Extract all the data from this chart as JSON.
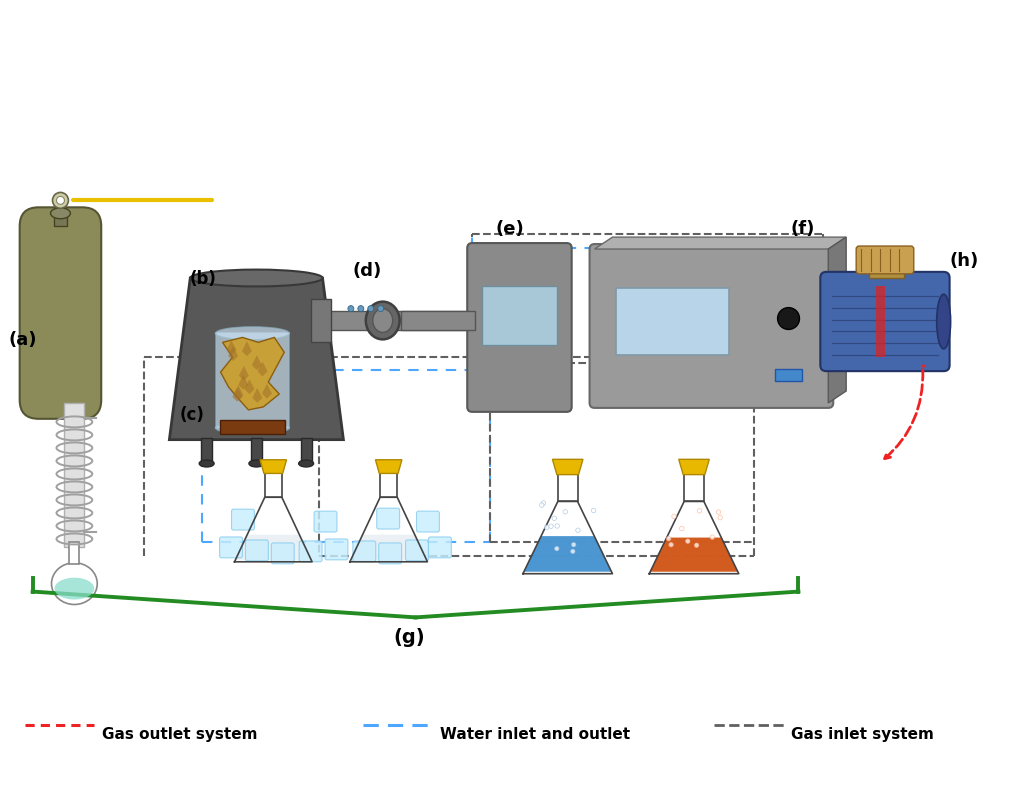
{
  "bg_color": "#ffffff",
  "labels": {
    "a": "(a)",
    "b": "(b)",
    "c": "(c)",
    "d": "(d)",
    "e": "(e)",
    "f": "(f)",
    "g": "(g)",
    "h": "(h)"
  },
  "legend": [
    {
      "label": "Gas outlet system",
      "color": "#ee2222"
    },
    {
      "label": "Water inlet and outlet",
      "color": "#4da6ff"
    },
    {
      "label": "Gas inlet system",
      "color": "#606060"
    }
  ],
  "colors": {
    "gas_cylinder": "#8B8B5A",
    "furnace_body": "#606060",
    "tube": "#888888",
    "device_e": "#909090",
    "device_f": "#a0a0a0",
    "flask_blue": "#3388cc",
    "flask_orange": "#cc4400",
    "flask_clear": "#e8e8f0",
    "stopper": "#e8b800",
    "green_bracket": "#228B22",
    "motor_blue": "#4466aa",
    "yellow_tube": "#e8c000",
    "dashed_gray": "#606060",
    "dashed_blue": "#4da6ff",
    "dashed_red": "#ee2222"
  }
}
